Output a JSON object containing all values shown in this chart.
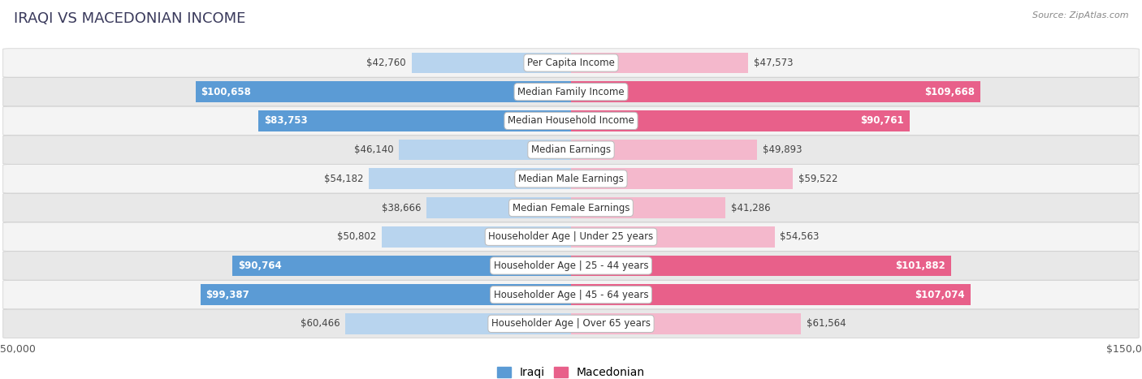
{
  "title": "IRAQI VS MACEDONIAN INCOME",
  "source": "Source: ZipAtlas.com",
  "categories": [
    "Per Capita Income",
    "Median Family Income",
    "Median Household Income",
    "Median Earnings",
    "Median Male Earnings",
    "Median Female Earnings",
    "Householder Age | Under 25 years",
    "Householder Age | 25 - 44 years",
    "Householder Age | 45 - 64 years",
    "Householder Age | Over 65 years"
  ],
  "iraqi_values": [
    42760,
    100658,
    83753,
    46140,
    54182,
    38666,
    50802,
    90764,
    99387,
    60466
  ],
  "macedonian_values": [
    47573,
    109668,
    90761,
    49893,
    59522,
    41286,
    54563,
    101882,
    107074,
    61564
  ],
  "iraqi_labels": [
    "$42,760",
    "$100,658",
    "$83,753",
    "$46,140",
    "$54,182",
    "$38,666",
    "$50,802",
    "$90,764",
    "$99,387",
    "$60,466"
  ],
  "macedonian_labels": [
    "$47,573",
    "$109,668",
    "$90,761",
    "$49,893",
    "$59,522",
    "$41,286",
    "$54,563",
    "$101,882",
    "$107,074",
    "$61,564"
  ],
  "iraqi_color_light": "#b8d4ee",
  "iraqi_color_dark": "#5b9bd5",
  "macedonian_color_light": "#f4b8cc",
  "macedonian_color_dark": "#e8608a",
  "bar_height": 0.72,
  "max_value": 150000,
  "background_color": "#ffffff",
  "row_bg_even": "#f4f4f4",
  "row_bg_odd": "#e8e8e8",
  "title_fontsize": 13,
  "label_fontsize": 8.5,
  "axis_label_fontsize": 9,
  "legend_fontsize": 10,
  "large_threshold": 70000
}
